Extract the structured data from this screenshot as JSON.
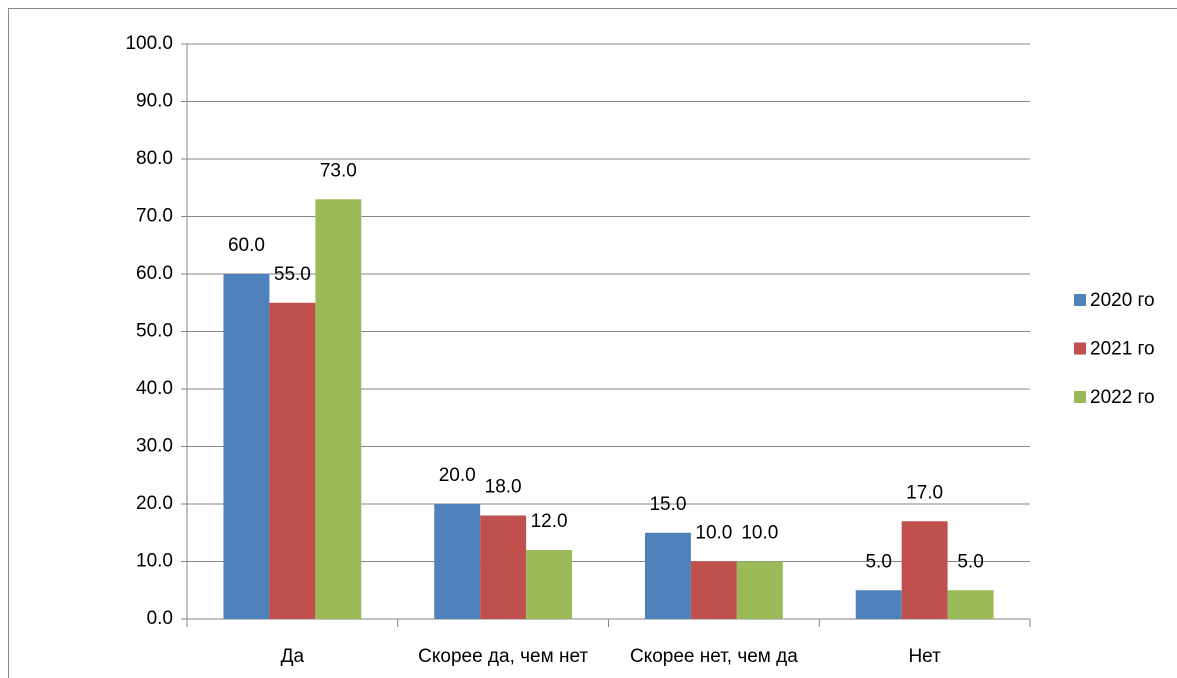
{
  "chart_data": {
    "type": "bar",
    "categories": [
      "Да",
      "Скорее да, чем нет",
      "Скорее нет, чем да",
      "Нет"
    ],
    "series": [
      {
        "name": "2020 го",
        "color": "#4f81bd",
        "values": [
          60,
          20,
          15,
          5
        ],
        "value_labels": [
          "60.0",
          "20.0",
          "15.0",
          "5.0"
        ]
      },
      {
        "name": "2021 го",
        "color": "#c0504d",
        "values": [
          55,
          18,
          10,
          17
        ],
        "value_labels": [
          "55.0",
          "18.0",
          "10.0",
          "17.0"
        ]
      },
      {
        "name": "2022 го",
        "color": "#9bbb59",
        "values": [
          73,
          12,
          10,
          5
        ],
        "value_labels": [
          "73.0",
          "12.0",
          "10.0",
          "5.0"
        ]
      }
    ],
    "ylim": [
      0,
      100
    ],
    "yticks": [
      {
        "value": 0,
        "label": "0.0"
      },
      {
        "value": 10,
        "label": "10.0"
      },
      {
        "value": 20,
        "label": "20.0"
      },
      {
        "value": 30,
        "label": "30.0"
      },
      {
        "value": 40,
        "label": "40.0"
      },
      {
        "value": 50,
        "label": "50.0"
      },
      {
        "value": 60,
        "label": "60.0"
      },
      {
        "value": 70,
        "label": "70.0"
      },
      {
        "value": 80,
        "label": "80.0"
      },
      {
        "value": 90,
        "label": "90.0"
      },
      {
        "value": 100,
        "label": "100.0"
      }
    ],
    "grid": true,
    "legend": "right"
  }
}
